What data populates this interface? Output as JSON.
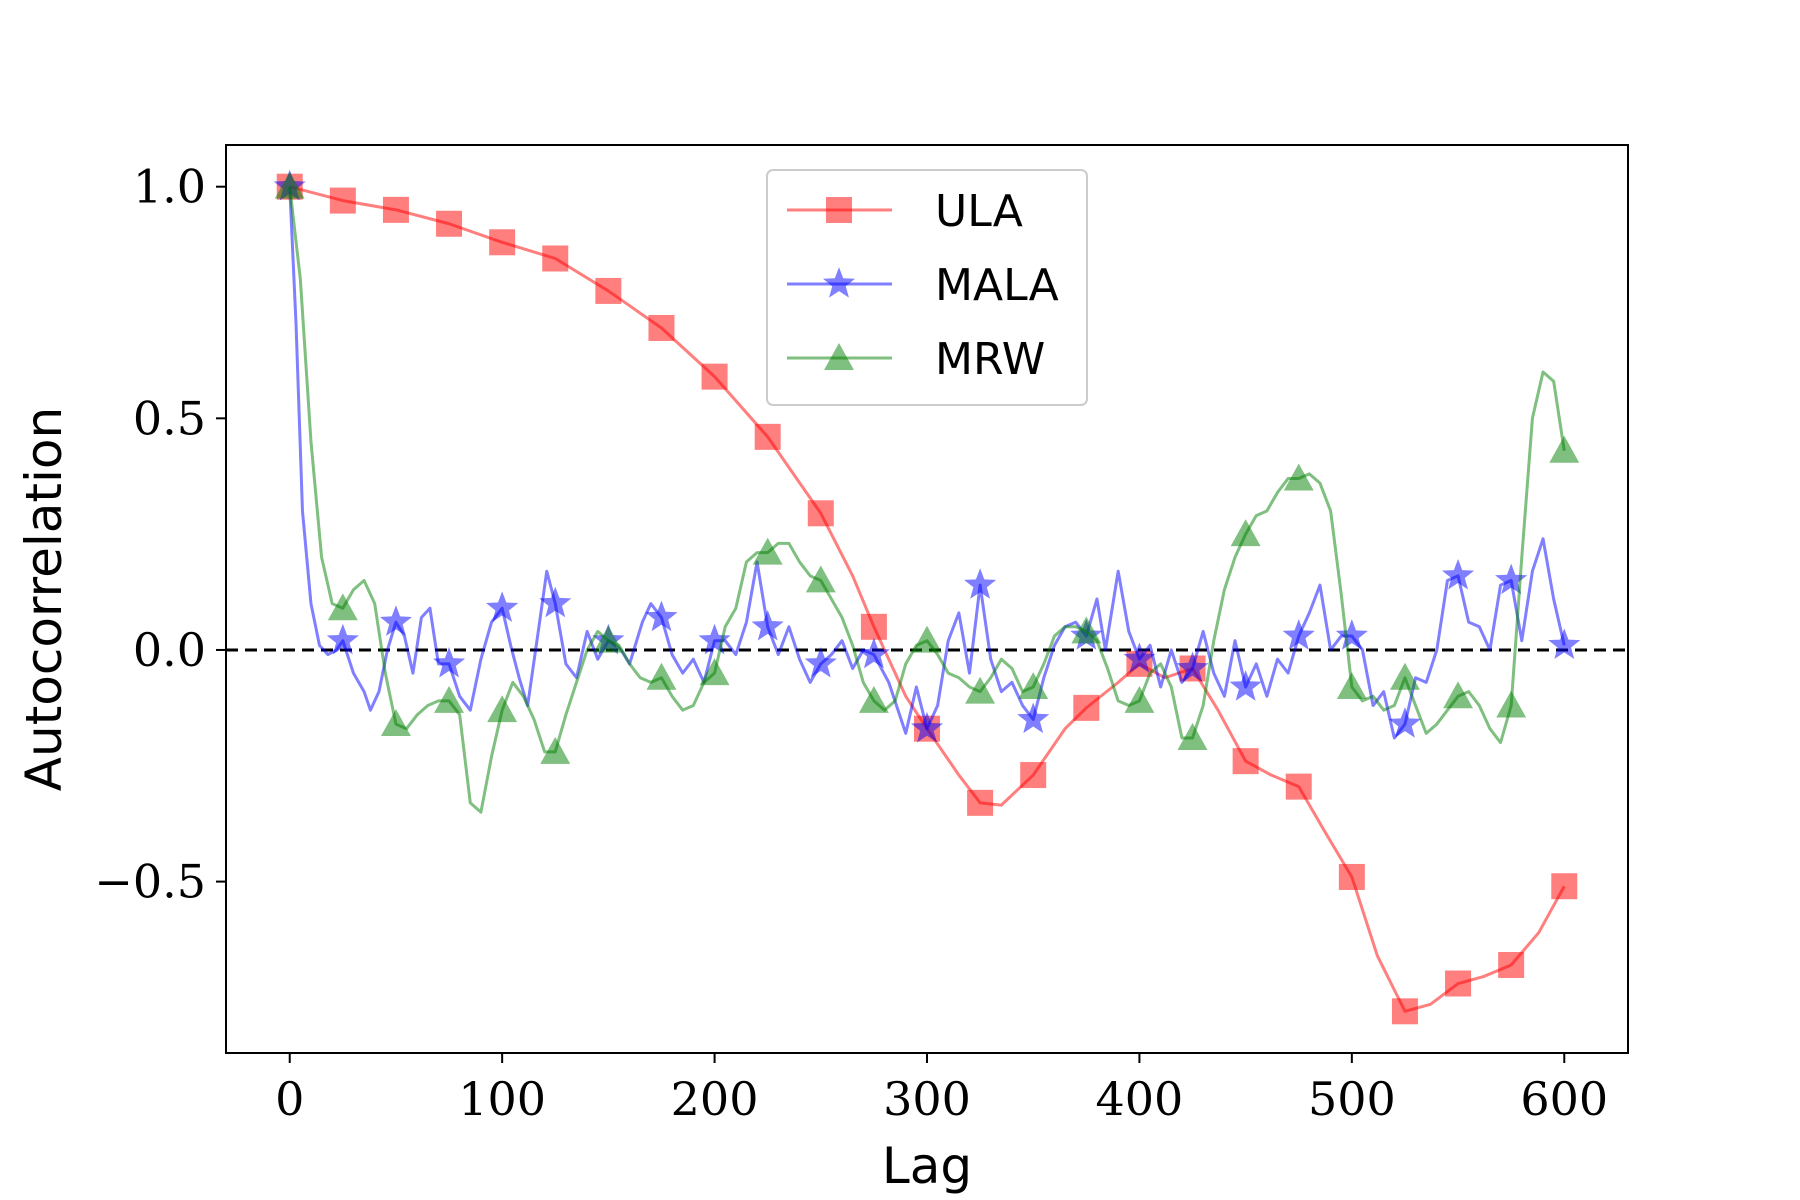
{
  "chart_data": {
    "type": "line",
    "xlabel": "Lag",
    "ylabel": "Autocorrelation",
    "xlim": [
      -30,
      630
    ],
    "ylim": [
      -0.87,
      1.09
    ],
    "xticks": [
      0,
      100,
      200,
      300,
      400,
      500,
      600
    ],
    "yticks": [
      -0.5,
      0.0,
      0.5,
      1.0
    ],
    "xtick_labels": [
      "0",
      "100",
      "200",
      "300",
      "400",
      "500",
      "600"
    ],
    "ytick_labels": [
      "−0.5",
      "0.0",
      "0.5",
      "1.0"
    ],
    "grid": false,
    "legend_position": "upper-center",
    "reference_line": {
      "y": 0.0,
      "style": "dashed",
      "color": "#000000"
    },
    "marker_every": 25,
    "series": [
      {
        "name": "ULA",
        "color": "#ff0000",
        "marker": "square",
        "points": [
          [
            0,
            1.0
          ],
          [
            25,
            0.97
          ],
          [
            50,
            0.95
          ],
          [
            75,
            0.92
          ],
          [
            100,
            0.88
          ],
          [
            125,
            0.845
          ],
          [
            150,
            0.775
          ],
          [
            175,
            0.695
          ],
          [
            200,
            0.59
          ],
          [
            225,
            0.46
          ],
          [
            250,
            0.295
          ],
          [
            265,
            0.16
          ],
          [
            275,
            0.05
          ],
          [
            290,
            -0.1
          ],
          [
            300,
            -0.17
          ],
          [
            315,
            -0.27
          ],
          [
            325,
            -0.33
          ],
          [
            335,
            -0.335
          ],
          [
            350,
            -0.27
          ],
          [
            365,
            -0.17
          ],
          [
            375,
            -0.125
          ],
          [
            390,
            -0.07
          ],
          [
            400,
            -0.03
          ],
          [
            412,
            -0.06
          ],
          [
            425,
            -0.04
          ],
          [
            437,
            -0.13
          ],
          [
            450,
            -0.24
          ],
          [
            462,
            -0.27
          ],
          [
            475,
            -0.295
          ],
          [
            487,
            -0.39
          ],
          [
            500,
            -0.49
          ],
          [
            512,
            -0.66
          ],
          [
            525,
            -0.78
          ],
          [
            537,
            -0.765
          ],
          [
            550,
            -0.72
          ],
          [
            562,
            -0.705
          ],
          [
            575,
            -0.68
          ],
          [
            588,
            -0.61
          ],
          [
            600,
            -0.51
          ]
        ]
      },
      {
        "name": "MALA",
        "color": "#0000ff",
        "marker": "star",
        "points": [
          [
            0,
            1.0
          ],
          [
            3,
            0.7
          ],
          [
            6,
            0.3
          ],
          [
            10,
            0.1
          ],
          [
            14,
            0.01
          ],
          [
            18,
            -0.01
          ],
          [
            22,
            0.0
          ],
          [
            25,
            0.02
          ],
          [
            30,
            -0.05
          ],
          [
            35,
            -0.09
          ],
          [
            38,
            -0.13
          ],
          [
            42,
            -0.09
          ],
          [
            46,
            0.0
          ],
          [
            50,
            0.06
          ],
          [
            54,
            0.03
          ],
          [
            58,
            -0.05
          ],
          [
            62,
            0.07
          ],
          [
            66,
            0.09
          ],
          [
            70,
            -0.03
          ],
          [
            75,
            -0.03
          ],
          [
            80,
            -0.1
          ],
          [
            85,
            -0.13
          ],
          [
            90,
            -0.02
          ],
          [
            95,
            0.06
          ],
          [
            100,
            0.09
          ],
          [
            104,
            0.01
          ],
          [
            108,
            -0.06
          ],
          [
            112,
            -0.12
          ],
          [
            117,
            0.04
          ],
          [
            121,
            0.17
          ],
          [
            125,
            0.1
          ],
          [
            130,
            -0.03
          ],
          [
            135,
            -0.06
          ],
          [
            140,
            0.04
          ],
          [
            145,
            -0.02
          ],
          [
            150,
            0.02
          ],
          [
            156,
            0.0
          ],
          [
            160,
            -0.03
          ],
          [
            166,
            0.06
          ],
          [
            170,
            0.1
          ],
          [
            175,
            0.07
          ],
          [
            180,
            -0.01
          ],
          [
            185,
            -0.05
          ],
          [
            190,
            -0.02
          ],
          [
            195,
            -0.07
          ],
          [
            200,
            0.02
          ],
          [
            205,
            0.02
          ],
          [
            210,
            -0.01
          ],
          [
            215,
            0.06
          ],
          [
            220,
            0.19
          ],
          [
            225,
            0.05
          ],
          [
            230,
            -0.01
          ],
          [
            235,
            0.05
          ],
          [
            240,
            -0.02
          ],
          [
            245,
            -0.07
          ],
          [
            250,
            -0.03
          ],
          [
            255,
            -0.01
          ],
          [
            260,
            0.02
          ],
          [
            265,
            -0.04
          ],
          [
            270,
            0.0
          ],
          [
            275,
            -0.01
          ],
          [
            282,
            -0.07
          ],
          [
            290,
            -0.18
          ],
          [
            295,
            -0.08
          ],
          [
            300,
            -0.17
          ],
          [
            305,
            -0.12
          ],
          [
            310,
            0.02
          ],
          [
            315,
            0.08
          ],
          [
            320,
            -0.05
          ],
          [
            325,
            0.14
          ],
          [
            330,
            -0.02
          ],
          [
            335,
            -0.09
          ],
          [
            340,
            -0.07
          ],
          [
            345,
            -0.12
          ],
          [
            350,
            -0.15
          ],
          [
            355,
            -0.06
          ],
          [
            360,
            0.01
          ],
          [
            365,
            0.05
          ],
          [
            370,
            0.06
          ],
          [
            375,
            0.03
          ],
          [
            380,
            0.11
          ],
          [
            384,
            0.0
          ],
          [
            390,
            0.17
          ],
          [
            395,
            0.04
          ],
          [
            400,
            -0.02
          ],
          [
            405,
            0.01
          ],
          [
            410,
            -0.08
          ],
          [
            415,
            0.0
          ],
          [
            420,
            -0.07
          ],
          [
            425,
            -0.04
          ],
          [
            430,
            0.04
          ],
          [
            435,
            -0.05
          ],
          [
            440,
            -0.1
          ],
          [
            445,
            0.02
          ],
          [
            450,
            -0.08
          ],
          [
            455,
            -0.03
          ],
          [
            460,
            -0.1
          ],
          [
            465,
            -0.02
          ],
          [
            470,
            -0.05
          ],
          [
            475,
            0.03
          ],
          [
            480,
            0.08
          ],
          [
            485,
            0.14
          ],
          [
            490,
            0.0
          ],
          [
            495,
            0.03
          ],
          [
            500,
            0.03
          ],
          [
            505,
            0.0
          ],
          [
            510,
            -0.12
          ],
          [
            515,
            -0.09
          ],
          [
            520,
            -0.19
          ],
          [
            525,
            -0.16
          ],
          [
            530,
            -0.06
          ],
          [
            535,
            -0.07
          ],
          [
            540,
            0.0
          ],
          [
            545,
            0.15
          ],
          [
            550,
            0.16
          ],
          [
            555,
            0.06
          ],
          [
            560,
            0.05
          ],
          [
            565,
            0.0
          ],
          [
            570,
            0.14
          ],
          [
            575,
            0.15
          ],
          [
            580,
            0.02
          ],
          [
            585,
            0.17
          ],
          [
            590,
            0.24
          ],
          [
            595,
            0.11
          ],
          [
            600,
            0.01
          ]
        ]
      },
      {
        "name": "MRW",
        "color": "#008000",
        "marker": "triangle",
        "points": [
          [
            0,
            1.0
          ],
          [
            5,
            0.8
          ],
          [
            10,
            0.45
          ],
          [
            15,
            0.2
          ],
          [
            20,
            0.1
          ],
          [
            25,
            0.09
          ],
          [
            30,
            0.13
          ],
          [
            35,
            0.15
          ],
          [
            40,
            0.1
          ],
          [
            45,
            -0.05
          ],
          [
            50,
            -0.16
          ],
          [
            55,
            -0.17
          ],
          [
            60,
            -0.14
          ],
          [
            65,
            -0.12
          ],
          [
            70,
            -0.11
          ],
          [
            75,
            -0.11
          ],
          [
            80,
            -0.14
          ],
          [
            85,
            -0.33
          ],
          [
            90,
            -0.35
          ],
          [
            95,
            -0.23
          ],
          [
            100,
            -0.13
          ],
          [
            105,
            -0.07
          ],
          [
            110,
            -0.1
          ],
          [
            115,
            -0.15
          ],
          [
            120,
            -0.22
          ],
          [
            125,
            -0.22
          ],
          [
            130,
            -0.14
          ],
          [
            135,
            -0.07
          ],
          [
            140,
            0.0
          ],
          [
            145,
            0.04
          ],
          [
            150,
            0.02
          ],
          [
            155,
            0.01
          ],
          [
            160,
            -0.03
          ],
          [
            165,
            -0.06
          ],
          [
            170,
            -0.07
          ],
          [
            175,
            -0.06
          ],
          [
            180,
            -0.1
          ],
          [
            185,
            -0.13
          ],
          [
            190,
            -0.12
          ],
          [
            195,
            -0.07
          ],
          [
            200,
            -0.05
          ],
          [
            205,
            0.05
          ],
          [
            210,
            0.09
          ],
          [
            215,
            0.19
          ],
          [
            220,
            0.21
          ],
          [
            225,
            0.21
          ],
          [
            230,
            0.23
          ],
          [
            235,
            0.23
          ],
          [
            240,
            0.19
          ],
          [
            245,
            0.16
          ],
          [
            250,
            0.15
          ],
          [
            255,
            0.11
          ],
          [
            260,
            0.07
          ],
          [
            265,
            0.01
          ],
          [
            270,
            -0.07
          ],
          [
            275,
            -0.11
          ],
          [
            280,
            -0.13
          ],
          [
            285,
            -0.11
          ],
          [
            290,
            -0.03
          ],
          [
            295,
            0.01
          ],
          [
            300,
            0.02
          ],
          [
            305,
            -0.01
          ],
          [
            310,
            -0.05
          ],
          [
            315,
            -0.06
          ],
          [
            320,
            -0.08
          ],
          [
            325,
            -0.09
          ],
          [
            330,
            -0.06
          ],
          [
            335,
            -0.02
          ],
          [
            340,
            -0.04
          ],
          [
            345,
            -0.09
          ],
          [
            350,
            -0.08
          ],
          [
            355,
            -0.03
          ],
          [
            360,
            0.03
          ],
          [
            365,
            0.05
          ],
          [
            370,
            0.05
          ],
          [
            375,
            0.04
          ],
          [
            380,
            0.02
          ],
          [
            385,
            -0.04
          ],
          [
            390,
            -0.11
          ],
          [
            395,
            -0.12
          ],
          [
            400,
            -0.11
          ],
          [
            405,
            -0.05
          ],
          [
            410,
            -0.03
          ],
          [
            415,
            -0.08
          ],
          [
            420,
            -0.19
          ],
          [
            425,
            -0.19
          ],
          [
            430,
            -0.12
          ],
          [
            435,
            0.02
          ],
          [
            440,
            0.13
          ],
          [
            445,
            0.2
          ],
          [
            450,
            0.25
          ],
          [
            455,
            0.29
          ],
          [
            460,
            0.3
          ],
          [
            465,
            0.34
          ],
          [
            470,
            0.37
          ],
          [
            475,
            0.37
          ],
          [
            480,
            0.38
          ],
          [
            485,
            0.36
          ],
          [
            490,
            0.3
          ],
          [
            495,
            0.12
          ],
          [
            500,
            -0.08
          ],
          [
            505,
            -0.11
          ],
          [
            510,
            -0.1
          ],
          [
            515,
            -0.13
          ],
          [
            520,
            -0.12
          ],
          [
            525,
            -0.06
          ],
          [
            530,
            -0.12
          ],
          [
            535,
            -0.18
          ],
          [
            540,
            -0.16
          ],
          [
            545,
            -0.13
          ],
          [
            550,
            -0.1
          ],
          [
            555,
            -0.09
          ],
          [
            560,
            -0.12
          ],
          [
            565,
            -0.17
          ],
          [
            570,
            -0.2
          ],
          [
            575,
            -0.12
          ],
          [
            580,
            0.2
          ],
          [
            585,
            0.5
          ],
          [
            590,
            0.6
          ],
          [
            595,
            0.58
          ],
          [
            600,
            0.43
          ]
        ]
      }
    ]
  }
}
